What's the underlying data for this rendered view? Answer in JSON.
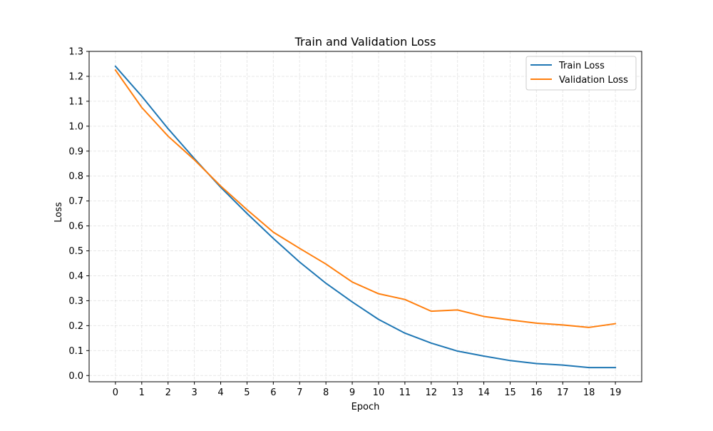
{
  "chart_data": {
    "type": "line",
    "title": "Train and Validation Loss",
    "xlabel": "Epoch",
    "ylabel": "Loss",
    "x": [
      0,
      1,
      2,
      3,
      4,
      5,
      6,
      7,
      8,
      9,
      10,
      11,
      12,
      13,
      14,
      15,
      16,
      17,
      18,
      19
    ],
    "xlim": [
      -1,
      20
    ],
    "ylim": [
      -0.025,
      1.3
    ],
    "xticks": [
      0,
      1,
      2,
      3,
      4,
      5,
      6,
      7,
      8,
      9,
      10,
      11,
      12,
      13,
      14,
      15,
      16,
      17,
      18,
      19
    ],
    "yticks": [
      0.0,
      0.1,
      0.2,
      0.3,
      0.4,
      0.5,
      0.6,
      0.7,
      0.8,
      0.9,
      1.0,
      1.1,
      1.2,
      1.3
    ],
    "ytick_labels": [
      "0.0",
      "0.1",
      "0.2",
      "0.3",
      "0.4",
      "0.5",
      "0.6",
      "0.7",
      "0.8",
      "0.9",
      "1.0",
      "1.1",
      "1.2",
      "1.3"
    ],
    "grid": true,
    "legend_position": "top-right",
    "series": [
      {
        "name": "Train Loss",
        "color": "#1f77b4",
        "values": [
          1.24,
          1.12,
          0.99,
          0.87,
          0.755,
          0.65,
          0.55,
          0.455,
          0.37,
          0.295,
          0.225,
          0.17,
          0.13,
          0.098,
          0.078,
          0.06,
          0.048,
          0.042,
          0.032,
          0.032
        ]
      },
      {
        "name": "Validation Loss",
        "color": "#ff7f0e",
        "values": [
          1.225,
          1.075,
          0.96,
          0.865,
          0.76,
          0.665,
          0.575,
          0.51,
          0.447,
          0.375,
          0.328,
          0.305,
          0.258,
          0.263,
          0.237,
          0.223,
          0.21,
          0.203,
          0.193,
          0.208
        ]
      }
    ]
  }
}
